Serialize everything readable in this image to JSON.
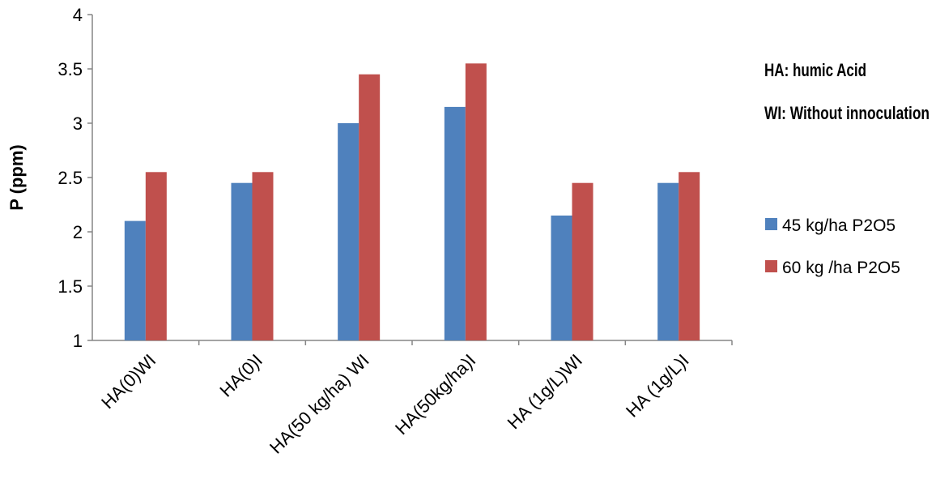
{
  "chart_data": {
    "type": "bar",
    "categories": [
      "HA(0)WI",
      "HA(0)I",
      "HA(50 kg/ha) WI",
      "HA(50kg/ha)I",
      "HA (1g/L)WI",
      "HA (1g/L)I"
    ],
    "series": [
      {
        "name": "45 kg/ha P2O5",
        "color": "#4F81BD",
        "values": [
          2.1,
          2.45,
          3.0,
          3.15,
          2.15,
          2.45
        ]
      },
      {
        "name": "60 kg /ha P2O5",
        "color": "#C0504D",
        "values": [
          2.55,
          2.55,
          3.45,
          3.55,
          2.45,
          2.55
        ]
      }
    ],
    "xlabel": "",
    "ylabel": "P (ppm)",
    "ylim": [
      1,
      4
    ],
    "yticks": [
      "1",
      "1.5",
      "2",
      "2.5",
      "3",
      "3.5",
      "4"
    ],
    "grid": false,
    "legend_position": "right",
    "annotations": [
      "HA: humic Acid",
      "WI: Without innoculation"
    ]
  }
}
